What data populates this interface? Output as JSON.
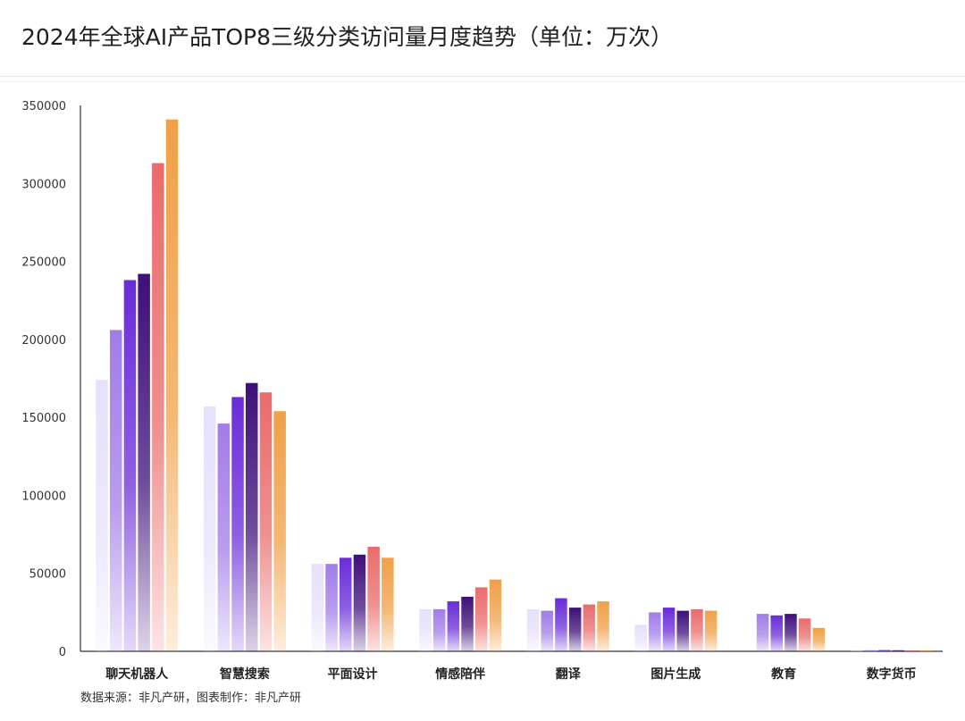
{
  "title": "2024年全球AI产品TOP8三级分类访问量月度趋势（单位：万次）",
  "source": "数据来源：非凡产研，图表制作：非凡产研",
  "chart_data": {
    "type": "bar",
    "title": "2024年全球AI产品TOP8三级分类访问量月度趋势（单位：万次）",
    "xlabel": "",
    "ylabel": "",
    "ylim": [
      0,
      350000
    ],
    "yticks": [
      "0",
      "50000",
      "100000",
      "150000",
      "200000",
      "250000",
      "300000",
      "350000"
    ],
    "grid": false,
    "legend": "none",
    "categories": [
      "聊天机器人",
      "智慧搜索",
      "平面设计",
      "情感陪伴",
      "翻译",
      "图片生成",
      "教育",
      "数字货币"
    ],
    "series": [
      {
        "color": "#e6e0fb",
        "values": [
          174000,
          157000,
          56000,
          27000,
          27000,
          17000,
          null,
          800
        ]
      },
      {
        "color": "#a27ce8",
        "values": [
          206000,
          146000,
          56000,
          27000,
          26000,
          25000,
          24000,
          700
        ]
      },
      {
        "color": "#6a2bd9",
        "values": [
          238000,
          163000,
          60000,
          32000,
          34000,
          28000,
          23000,
          800
        ]
      },
      {
        "color": "#3f0f7a",
        "values": [
          242000,
          172000,
          62000,
          35000,
          28000,
          26000,
          24000,
          700
        ]
      },
      {
        "color": "#ea6b6b",
        "values": [
          313000,
          166000,
          67000,
          41000,
          30000,
          27000,
          21000,
          600
        ]
      },
      {
        "color": "#f0a047",
        "values": [
          341000,
          154000,
          60000,
          46000,
          32000,
          26000,
          15000,
          500
        ]
      }
    ]
  }
}
